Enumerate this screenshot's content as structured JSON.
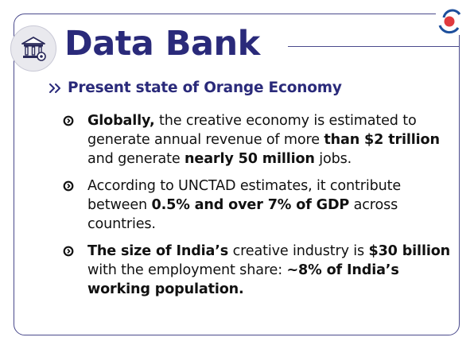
{
  "title": "Data Bank",
  "subheading": "Present state of Orange Economy",
  "colors": {
    "accent": "#2a2a7a",
    "border": "#4a4a8c",
    "logo_red": "#e03a3e",
    "logo_blue": "#1d4f9c"
  },
  "icons": {
    "header": "bank-building-icon",
    "subheading": "double-chevron-right-icon",
    "bullet": "circle-arrow-bullet-icon",
    "logo": "brand-logo"
  },
  "items": [
    {
      "b1": "Globally,",
      "t1": " the creative economy is estimated to generate annual revenue of more ",
      "b2": "than $2 trillion",
      "t2": " and generate ",
      "b3": "nearly 50 million",
      "t3": " jobs."
    },
    {
      "t1": "According to UNCTAD estimates, it contribute between ",
      "b1": "0.5% and over 7% of GDP",
      "t2": " across countries."
    },
    {
      "b1": "The size of India’s",
      "t1": " creative industry is ",
      "b2": "$30 billion",
      "t2": " with the employment share: ",
      "b3": "~8% of India’s working population."
    }
  ]
}
